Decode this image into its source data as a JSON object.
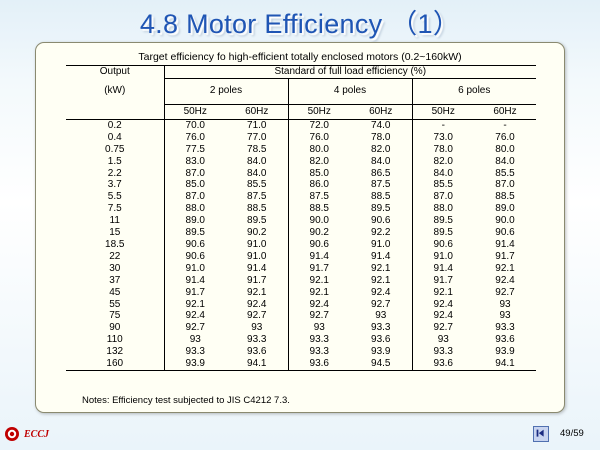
{
  "title": "4.8 Motor Efficiency （1）",
  "caption": "Target efficiency fo high-efficient totally enclosed motors (0.2~160kW)",
  "table": {
    "output_label": "Output",
    "kw_label": "(kW)",
    "standard_label": "Standard of full load efficiency (%)",
    "pole_groups": [
      "2 poles",
      "4 poles",
      "6 poles"
    ],
    "freqs": [
      "50Hz",
      "60Hz",
      "50Hz",
      "60Hz",
      "50Hz",
      "60Hz"
    ],
    "rows": [
      {
        "kw": "0.2",
        "vals": [
          "70.0",
          "71.0",
          "72.0",
          "74.0",
          "-",
          "-"
        ]
      },
      {
        "kw": "0.4",
        "vals": [
          "76.0",
          "77.0",
          "76.0",
          "78.0",
          "73.0",
          "76.0"
        ]
      },
      {
        "kw": "0.75",
        "vals": [
          "77.5",
          "78.5",
          "80.0",
          "82.0",
          "78.0",
          "80.0"
        ]
      },
      {
        "kw": "1.5",
        "vals": [
          "83.0",
          "84.0",
          "82.0",
          "84.0",
          "82.0",
          "84.0"
        ]
      },
      {
        "kw": "2.2",
        "vals": [
          "87.0",
          "84.0",
          "85.0",
          "86.5",
          "84.0",
          "85.5"
        ]
      },
      {
        "kw": "3.7",
        "vals": [
          "85.0",
          "85.5",
          "86.0",
          "87.5",
          "85.5",
          "87.0"
        ]
      },
      {
        "kw": "5.5",
        "vals": [
          "87.0",
          "87.5",
          "87.5",
          "88.5",
          "87.0",
          "88.5"
        ]
      },
      {
        "kw": "7.5",
        "vals": [
          "88.0",
          "88.5",
          "88.5",
          "89.5",
          "88.0",
          "89.0"
        ]
      },
      {
        "kw": "11",
        "vals": [
          "89.0",
          "89.5",
          "90.0",
          "90.6",
          "89.5",
          "90.0"
        ]
      },
      {
        "kw": "15",
        "vals": [
          "89.5",
          "90.2",
          "90.2",
          "92.2",
          "89.5",
          "90.6"
        ]
      },
      {
        "kw": "18.5",
        "vals": [
          "90.6",
          "91.0",
          "90.6",
          "91.0",
          "90.6",
          "91.4"
        ]
      },
      {
        "kw": "22",
        "vals": [
          "90.6",
          "91.0",
          "91.4",
          "91.4",
          "91.0",
          "91.7"
        ]
      },
      {
        "kw": "30",
        "vals": [
          "91.0",
          "91.4",
          "91.7",
          "92.1",
          "91.4",
          "92.1"
        ]
      },
      {
        "kw": "37",
        "vals": [
          "91.4",
          "91.7",
          "92.1",
          "92.1",
          "91.7",
          "92.4"
        ]
      },
      {
        "kw": "45",
        "vals": [
          "91.7",
          "92.1",
          "92.1",
          "92.4",
          "92.1",
          "92.7"
        ]
      },
      {
        "kw": "55",
        "vals": [
          "92.1",
          "92.4",
          "92.4",
          "92.7",
          "92.4",
          "93"
        ]
      },
      {
        "kw": "75",
        "vals": [
          "92.4",
          "92.7",
          "92.7",
          "93",
          "92.4",
          "93"
        ]
      },
      {
        "kw": "90",
        "vals": [
          "92.7",
          "93",
          "93",
          "93.3",
          "92.7",
          "93.3"
        ]
      },
      {
        "kw": "110",
        "vals": [
          "93",
          "93.3",
          "93.3",
          "93.6",
          "93",
          "93.6"
        ]
      },
      {
        "kw": "132",
        "vals": [
          "93.3",
          "93.6",
          "93.3",
          "93.9",
          "93.3",
          "93.9"
        ]
      },
      {
        "kw": "160",
        "vals": [
          "93.9",
          "94.1",
          "93.6",
          "94.5",
          "93.6",
          "94.1"
        ]
      }
    ]
  },
  "notes": "Notes: Efficiency test subjected to JIS C4212 7.3.",
  "footer": {
    "logo_text": "ECCJ",
    "logo_icon": "eccj-logo-icon",
    "nav_icon": "previous-slide-icon",
    "page_number": "49/59"
  },
  "colors": {
    "title": "#1f55b4",
    "logo": "#c00000",
    "card_bg": "#fffff4"
  }
}
